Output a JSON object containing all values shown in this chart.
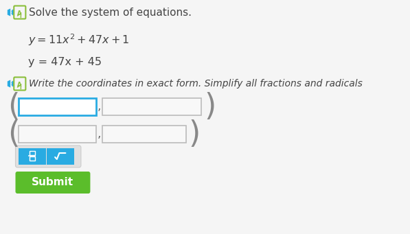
{
  "bg_color": "#f5f5f5",
  "title_text": "Solve the system of equations.",
  "eq2": "y = 47x + 45",
  "subtitle": "Write the coordinates in exact form. Simplify all fractions and radicals",
  "speaker_color": "#29ABE2",
  "icon_color": "#8BBF3C",
  "input_border_color1": "#29ABE2",
  "input_border_color2": "#BBBBBB",
  "input_bg": "#FFFFFF",
  "frac_btn_color": "#29ABE2",
  "sqrt_btn_color": "#29ABE2",
  "btn_container_bg": "#E8E8E8",
  "submit_color": "#5BBD2B",
  "submit_text": "Submit",
  "sqrt_symbol": "√",
  "text_color": "#444444"
}
